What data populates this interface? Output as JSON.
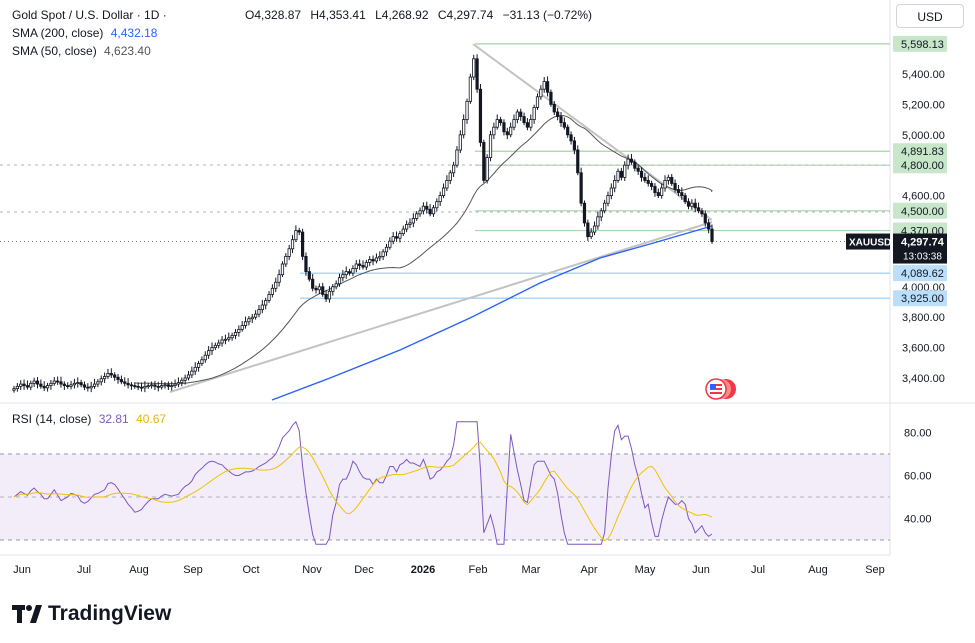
{
  "header": {
    "symbol_title": "Gold Spot / U.S. Dollar · 1D ·",
    "ohlc": {
      "open": "O4,328.87",
      "high": "H4,353.41",
      "low": "L4,268.92",
      "close": "C4,297.74",
      "change": "−31.13 (−0.72%)"
    },
    "currency_button": "USD"
  },
  "indicators": {
    "sma200": {
      "label": "SMA (200, close)",
      "value": "4,432.18",
      "color": "#2962ff"
    },
    "sma50": {
      "label": "SMA (50, close)",
      "value": "4,623.40",
      "color": "#555555"
    },
    "rsi": {
      "label": "RSI (14, close)",
      "value": "32.81",
      "ma_value": "40.67",
      "color": "#7e57c2",
      "ma_color": "#f2c200"
    }
  },
  "branding": {
    "logo_text": "TradingView"
  },
  "colors": {
    "up": "#131722",
    "down": "#131722",
    "last_price_bg": "#131722",
    "green_level": "#c8e6c9",
    "blue_level": "#bbdefb"
  },
  "chart_data": {
    "type": "candlestick",
    "symbol": "XAUUSD",
    "timeframe": "1D",
    "last_price": "4,297.74",
    "countdown": "13:03:38",
    "y_axis_ticks": [
      "5,400.00",
      "5,200.00",
      "5,000.00",
      "4,600.00",
      "4,000.00",
      "3,800.00",
      "3,600.00",
      "3,400.00"
    ],
    "x_axis_ticks": [
      "Jun",
      "Jul",
      "Aug",
      "Sep",
      "Oct",
      "Nov",
      "Dec",
      "2026",
      "Feb",
      "Mar",
      "Apr",
      "May",
      "Jun",
      "Jul",
      "Aug",
      "Sep"
    ],
    "price_levels": [
      {
        "label": "5,598.13",
        "value": 5598.13,
        "color": "green"
      },
      {
        "label": "4,891.83",
        "value": 4891.83,
        "color": "green"
      },
      {
        "label": "4,800.00",
        "value": 4800.0,
        "color": "green"
      },
      {
        "label": "4,500.00",
        "value": 4500.0,
        "color": "green"
      },
      {
        "label": "4,370.00",
        "value": 4370.0,
        "color": "green"
      },
      {
        "label": "4,089.62",
        "value": 4089.62,
        "color": "blue"
      },
      {
        "label": "3,925.00",
        "value": 3925.0,
        "color": "blue"
      }
    ],
    "close_series": [
      3330,
      3345,
      3360,
      3350,
      3340,
      3365,
      3380,
      3360,
      3345,
      3335,
      3350,
      3365,
      3380,
      3375,
      3360,
      3350,
      3345,
      3355,
      3365,
      3370,
      3355,
      3340,
      3335,
      3345,
      3360,
      3375,
      3395,
      3410,
      3430,
      3420,
      3405,
      3390,
      3375,
      3365,
      3355,
      3350,
      3345,
      3340,
      3335,
      3345,
      3350,
      3355,
      3345,
      3340,
      3350,
      3355,
      3345,
      3350,
      3360,
      3370,
      3385,
      3400,
      3420,
      3445,
      3470,
      3495,
      3520,
      3550,
      3580,
      3600,
      3615,
      3630,
      3650,
      3655,
      3665,
      3680,
      3700,
      3720,
      3745,
      3770,
      3790,
      3800,
      3820,
      3850,
      3880,
      3910,
      3950,
      3990,
      4030,
      4080,
      4150,
      4200,
      4250,
      4310,
      4370,
      4360,
      4200,
      4100,
      4050,
      3990,
      3980,
      4000,
      3950,
      3920,
      3970,
      4000,
      4020,
      4060,
      4080,
      4100,
      4090,
      4120,
      4150,
      4140,
      4130,
      4160,
      4180,
      4170,
      4190,
      4200,
      4230,
      4260,
      4300,
      4330,
      4320,
      4350,
      4380,
      4410,
      4420,
      4450,
      4480,
      4500,
      4530,
      4510,
      4480,
      4520,
      4560,
      4600,
      4650,
      4700,
      4750,
      4800,
      4900,
      5000,
      5100,
      5220,
      5380,
      5500,
      5300,
      4950,
      4700,
      4850,
      5000,
      5050,
      5100,
      5080,
      5020,
      5000,
      5050,
      5100,
      5150,
      5120,
      5080,
      5050,
      5100,
      5180,
      5250,
      5300,
      5350,
      5280,
      5200,
      5150,
      5120,
      5080,
      5050,
      5000,
      4960,
      4900,
      4750,
      4550,
      4420,
      4330,
      4360,
      4400,
      4460,
      4500,
      4550,
      4600,
      4650,
      4700,
      4760,
      4720,
      4800,
      4840,
      4820,
      4780,
      4760,
      4720,
      4700,
      4680,
      4660,
      4620,
      4600,
      4650,
      4700,
      4720,
      4680,
      4640,
      4620,
      4600,
      4560,
      4530,
      4550,
      4520,
      4500,
      4480,
      4420,
      4380,
      4298
    ],
    "sma200_series_start": [
      3290,
      4432.18
    ],
    "sma50_series_end": 4623.4,
    "rsi": {
      "ticks": [
        "80.00",
        "60.00",
        "40.00"
      ],
      "bands": [
        70,
        50,
        30
      ],
      "last": 32.81,
      "ma_last": 40.67
    }
  }
}
